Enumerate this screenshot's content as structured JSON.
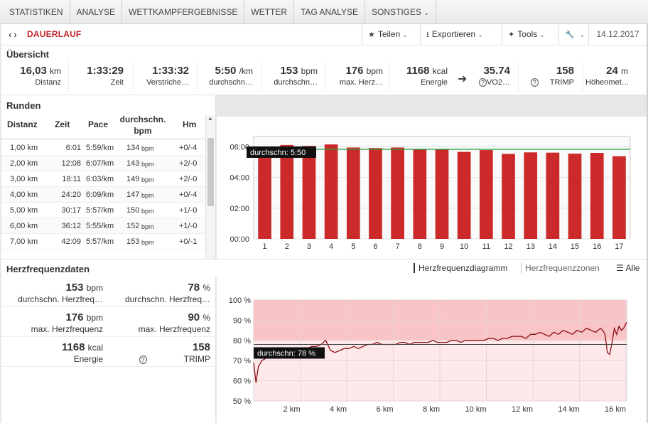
{
  "nav": {
    "tabs": [
      "STATISTIKEN",
      "ANALYSE",
      "WETTKAMPFERGEBNISSE",
      "WETTER",
      "TAG ANALYSE"
    ],
    "more_label": "SONSTIGES"
  },
  "titlebar": {
    "title": "DAUERLAUF",
    "share_label": "Teilen",
    "export_label": "Exportieren",
    "tools_label": "Tools",
    "date": "14.12.2017"
  },
  "overview": {
    "title": "Übersicht",
    "stats": [
      {
        "value": "16,03",
        "unit": "km",
        "label": "Distanz"
      },
      {
        "value": "1:33:29",
        "unit": "",
        "label": "Zeit"
      },
      {
        "value": "1:33:32",
        "unit": "",
        "label": "Verstriche…"
      },
      {
        "value": "5:50",
        "unit": "/km",
        "label": "durchschn…"
      },
      {
        "value": "153",
        "unit": "bpm",
        "label": "durchschn…"
      },
      {
        "value": "176",
        "unit": "bpm",
        "label": "max. Herz…"
      },
      {
        "value": "1168",
        "unit": "kcal",
        "label": "Energie"
      },
      {
        "value": "35.74",
        "unit": "",
        "label": "VO2…"
      },
      {
        "value": "158",
        "unit": "",
        "label": "TRIMP"
      },
      {
        "value": "24",
        "unit": "m",
        "label": "Höhenmet…"
      }
    ]
  },
  "laps": {
    "title": "Runden",
    "headers": [
      "Distanz",
      "Zeit",
      "Pace",
      "durchschn. bpm",
      "Hm"
    ],
    "rows": [
      {
        "dist": "1,00 km",
        "time": "6:01",
        "pace": "5:59/km",
        "bpm": "134",
        "hm": "+0/-4"
      },
      {
        "dist": "2,00 km",
        "time": "12:08",
        "pace": "6:07/km",
        "bpm": "143",
        "hm": "+2/-0"
      },
      {
        "dist": "3,00 km",
        "time": "18:11",
        "pace": "6:03/km",
        "bpm": "149",
        "hm": "+2/-0"
      },
      {
        "dist": "4,00 km",
        "time": "24:20",
        "pace": "6:09/km",
        "bpm": "147",
        "hm": "+0/-4"
      },
      {
        "dist": "5,00 km",
        "time": "30:17",
        "pace": "5:57/km",
        "bpm": "150",
        "hm": "+1/-0"
      },
      {
        "dist": "6,00 km",
        "time": "36:12",
        "pace": "5:55/km",
        "bpm": "152",
        "hm": "+1/-0"
      },
      {
        "dist": "7,00 km",
        "time": "42:09",
        "pace": "5:57/km",
        "bpm": "153",
        "hm": "+0/-1"
      }
    ],
    "bpm_unit": "bpm"
  },
  "hr": {
    "title": "Herzfrequenzdaten",
    "tab_diagram": "Herzfrequenzdiagramm",
    "tab_zones": "Herzfrequenzzonen",
    "tab_all": "Alle",
    "cells": [
      {
        "value": "153",
        "unit": "bpm",
        "label": "durchschn. Herzfreq…"
      },
      {
        "value": "78",
        "unit": "%",
        "label": "durchschn. Herzfreq…"
      },
      {
        "value": "176",
        "unit": "bpm",
        "label": "max. Herzfrequenz"
      },
      {
        "value": "90",
        "unit": "%",
        "label": "max. Herzfrequenz"
      },
      {
        "value": "1168",
        "unit": "kcal",
        "label": "Energie"
      },
      {
        "value": "158",
        "unit": "",
        "label": "TRIMP"
      }
    ]
  },
  "chart_data": [
    {
      "type": "bar",
      "categories": [
        "1",
        "2",
        "3",
        "4",
        "5",
        "6",
        "7",
        "8",
        "9",
        "10",
        "11",
        "12",
        "13",
        "14",
        "15",
        "16",
        "17"
      ],
      "values": [
        "5:59",
        "6:07",
        "6:03",
        "6:09",
        "5:57",
        "5:55",
        "5:57",
        "5:51",
        "5:49",
        "5:40",
        "5:47",
        "5:32",
        "5:38",
        "5:37",
        "5:33",
        "5:36",
        "5:23"
      ],
      "ylim": [
        "00:00",
        "06:40"
      ],
      "yticks": [
        "00:00",
        "02:00",
        "04:00",
        "06:00"
      ],
      "avg_label": "durchschn: 5:50",
      "avg_value": "5:50",
      "color": "#cc2a2a"
    },
    {
      "type": "line",
      "xlabel": "",
      "ylabel": "",
      "xticks": [
        "2 km",
        "4 km",
        "6 km",
        "8 km",
        "10 km",
        "12 km",
        "14 km",
        "16 km"
      ],
      "yticks": [
        "100 %",
        "90 %",
        "80 %",
        "70 %",
        "60 %",
        "50 %"
      ],
      "ylim": [
        50,
        100
      ],
      "xlim": [
        0,
        16.03
      ],
      "avg_label": "durchschn: 78 %",
      "avg_value": 78,
      "zone_from": 80,
      "series": [
        {
          "x": [
            0,
            0.1,
            0.2,
            0.35,
            0.5,
            0.7,
            0.9,
            1.1,
            1.3,
            1.5,
            1.7,
            1.9,
            2.1,
            2.3,
            2.5,
            2.7,
            2.9,
            3.1,
            3.3,
            3.5,
            3.7,
            3.9,
            4.1,
            4.3,
            4.5,
            4.7,
            4.9,
            5.1,
            5.3,
            5.5,
            5.7,
            5.9,
            6.1,
            6.3,
            6.5,
            6.7,
            6.9,
            7.1,
            7.3,
            7.5,
            7.7,
            7.9,
            8.1,
            8.3,
            8.5,
            8.7,
            8.9,
            9.1,
            9.3,
            9.5,
            9.7,
            9.9,
            10.1,
            10.3,
            10.5,
            10.7,
            10.9,
            11.1,
            11.3,
            11.5,
            11.7,
            11.9,
            12.1,
            12.3,
            12.5,
            12.7,
            12.9,
            13.1,
            13.3,
            13.5,
            13.7,
            13.9,
            14.1,
            14.3,
            14.5,
            14.7,
            14.9,
            15.0,
            15.1,
            15.2,
            15.3,
            15.4,
            15.5,
            15.6,
            15.7,
            15.8,
            15.9,
            16.03
          ],
          "y": [
            69,
            59,
            67,
            70,
            71,
            72,
            73,
            73,
            74,
            74,
            75,
            75,
            76,
            76,
            77,
            77,
            78,
            80,
            75,
            74,
            75,
            76,
            76,
            77,
            76,
            77,
            78,
            78,
            79,
            78,
            78,
            78,
            78,
            79,
            79,
            78,
            79,
            79,
            79,
            79,
            80,
            79,
            79,
            79,
            80,
            80,
            79,
            80,
            80,
            80,
            80,
            80,
            81,
            81,
            80,
            81,
            81,
            82,
            82,
            82,
            81,
            83,
            83,
            84,
            83,
            82,
            84,
            83,
            85,
            84,
            83,
            85,
            84,
            86,
            85,
            84,
            86,
            85,
            83,
            74,
            73,
            79,
            86,
            83,
            87,
            85,
            86,
            89
          ]
        }
      ],
      "color": "#8b0f14"
    }
  ]
}
